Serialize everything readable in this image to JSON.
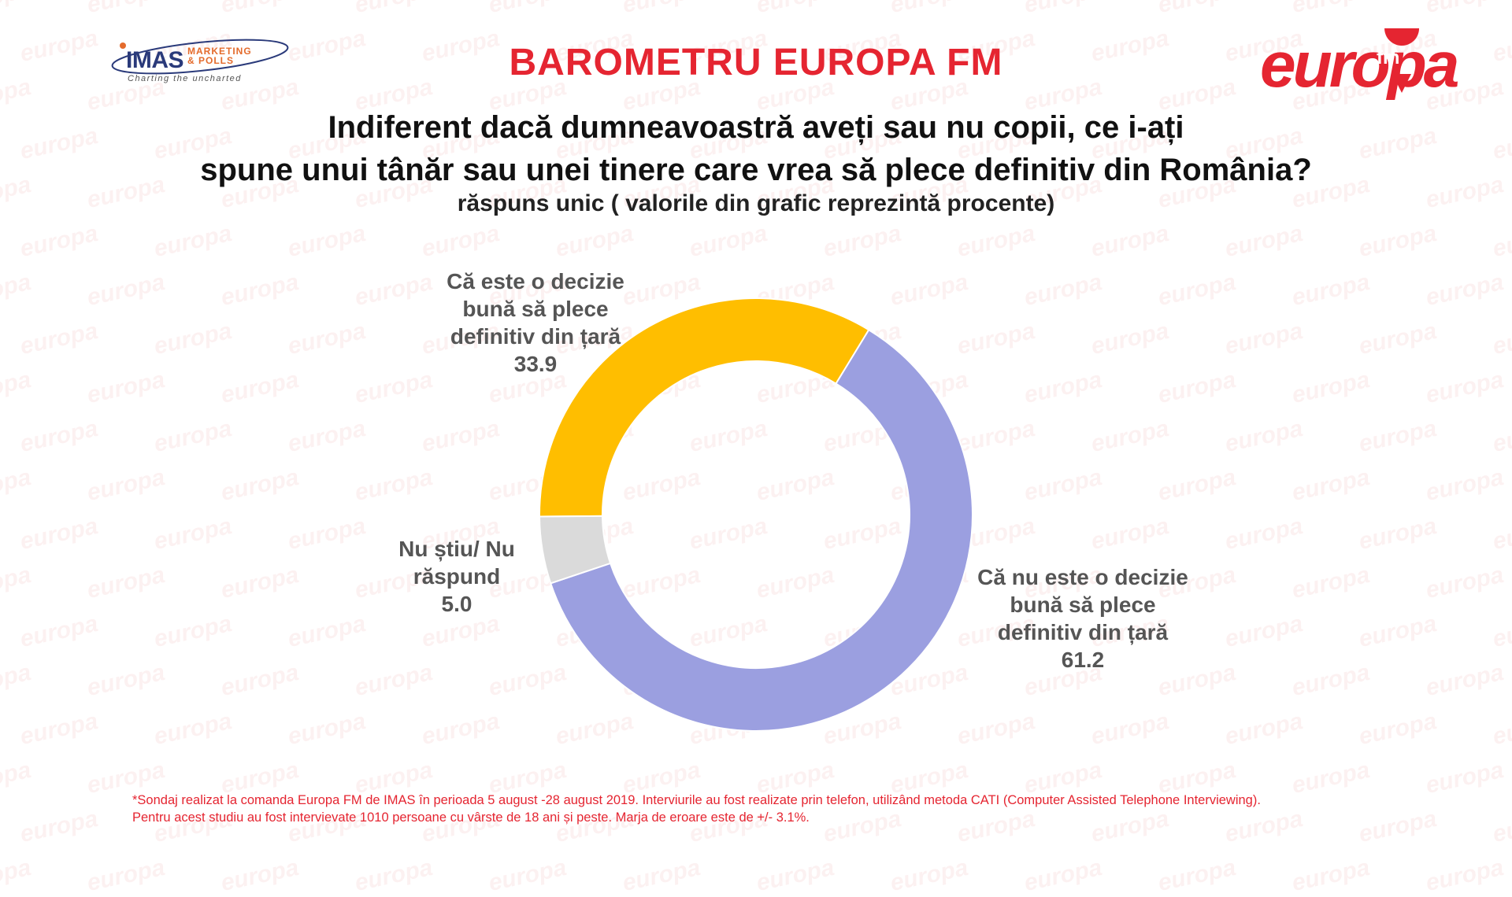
{
  "header": {
    "headline": "BAROMETRU EUROPA FM",
    "imas_logo": {
      "main": "IMAS",
      "side_line1": "MARKETING",
      "side_line2": "& POLLS",
      "tagline": "Charting the uncharted"
    },
    "europa_logo": {
      "word": "europa",
      "fm": "fm"
    }
  },
  "question": {
    "line1": "Indiferent dacă dumneavoastră aveți sau nu copii, ce i-ați",
    "line2": "spune unui tânăr sau unei tinere care vrea să plece definitiv din România?",
    "subtitle": "răspuns unic ( valorile din grafic reprezintă procente)"
  },
  "watermark_text": "europa",
  "chart_data": {
    "type": "pie",
    "donut": true,
    "unit": "%",
    "slices": [
      {
        "label_lines": [
          "Că este o decizie",
          "bună să plece",
          "definitiv din țară"
        ],
        "value": 33.9,
        "value_text": "33.9",
        "color": "#ffbe00"
      },
      {
        "label_lines": [
          "Că nu este o decizie",
          "bună să plece",
          "definitiv din țară"
        ],
        "value": 61.2,
        "value_text": "61.2",
        "color": "#9b9fe0"
      },
      {
        "label_lines": [
          "Nu știu/ Nu",
          "răspund"
        ],
        "value": 5.0,
        "value_text": "5.0",
        "color": "#dadada"
      }
    ]
  },
  "footnote": {
    "line1": "*Sondaj realizat la comanda Europa FM de IMAS în perioada 5 august -28 august 2019. Interviurile au fost realizate prin telefon, utilizând metoda CATI (Computer Assisted Telephone Interviewing).",
    "line2": "Pentru acest studiu au fost intervievate 1010 persoane cu vârste de 18 ani și peste. Marja de eroare este de +/- 3.1%."
  }
}
